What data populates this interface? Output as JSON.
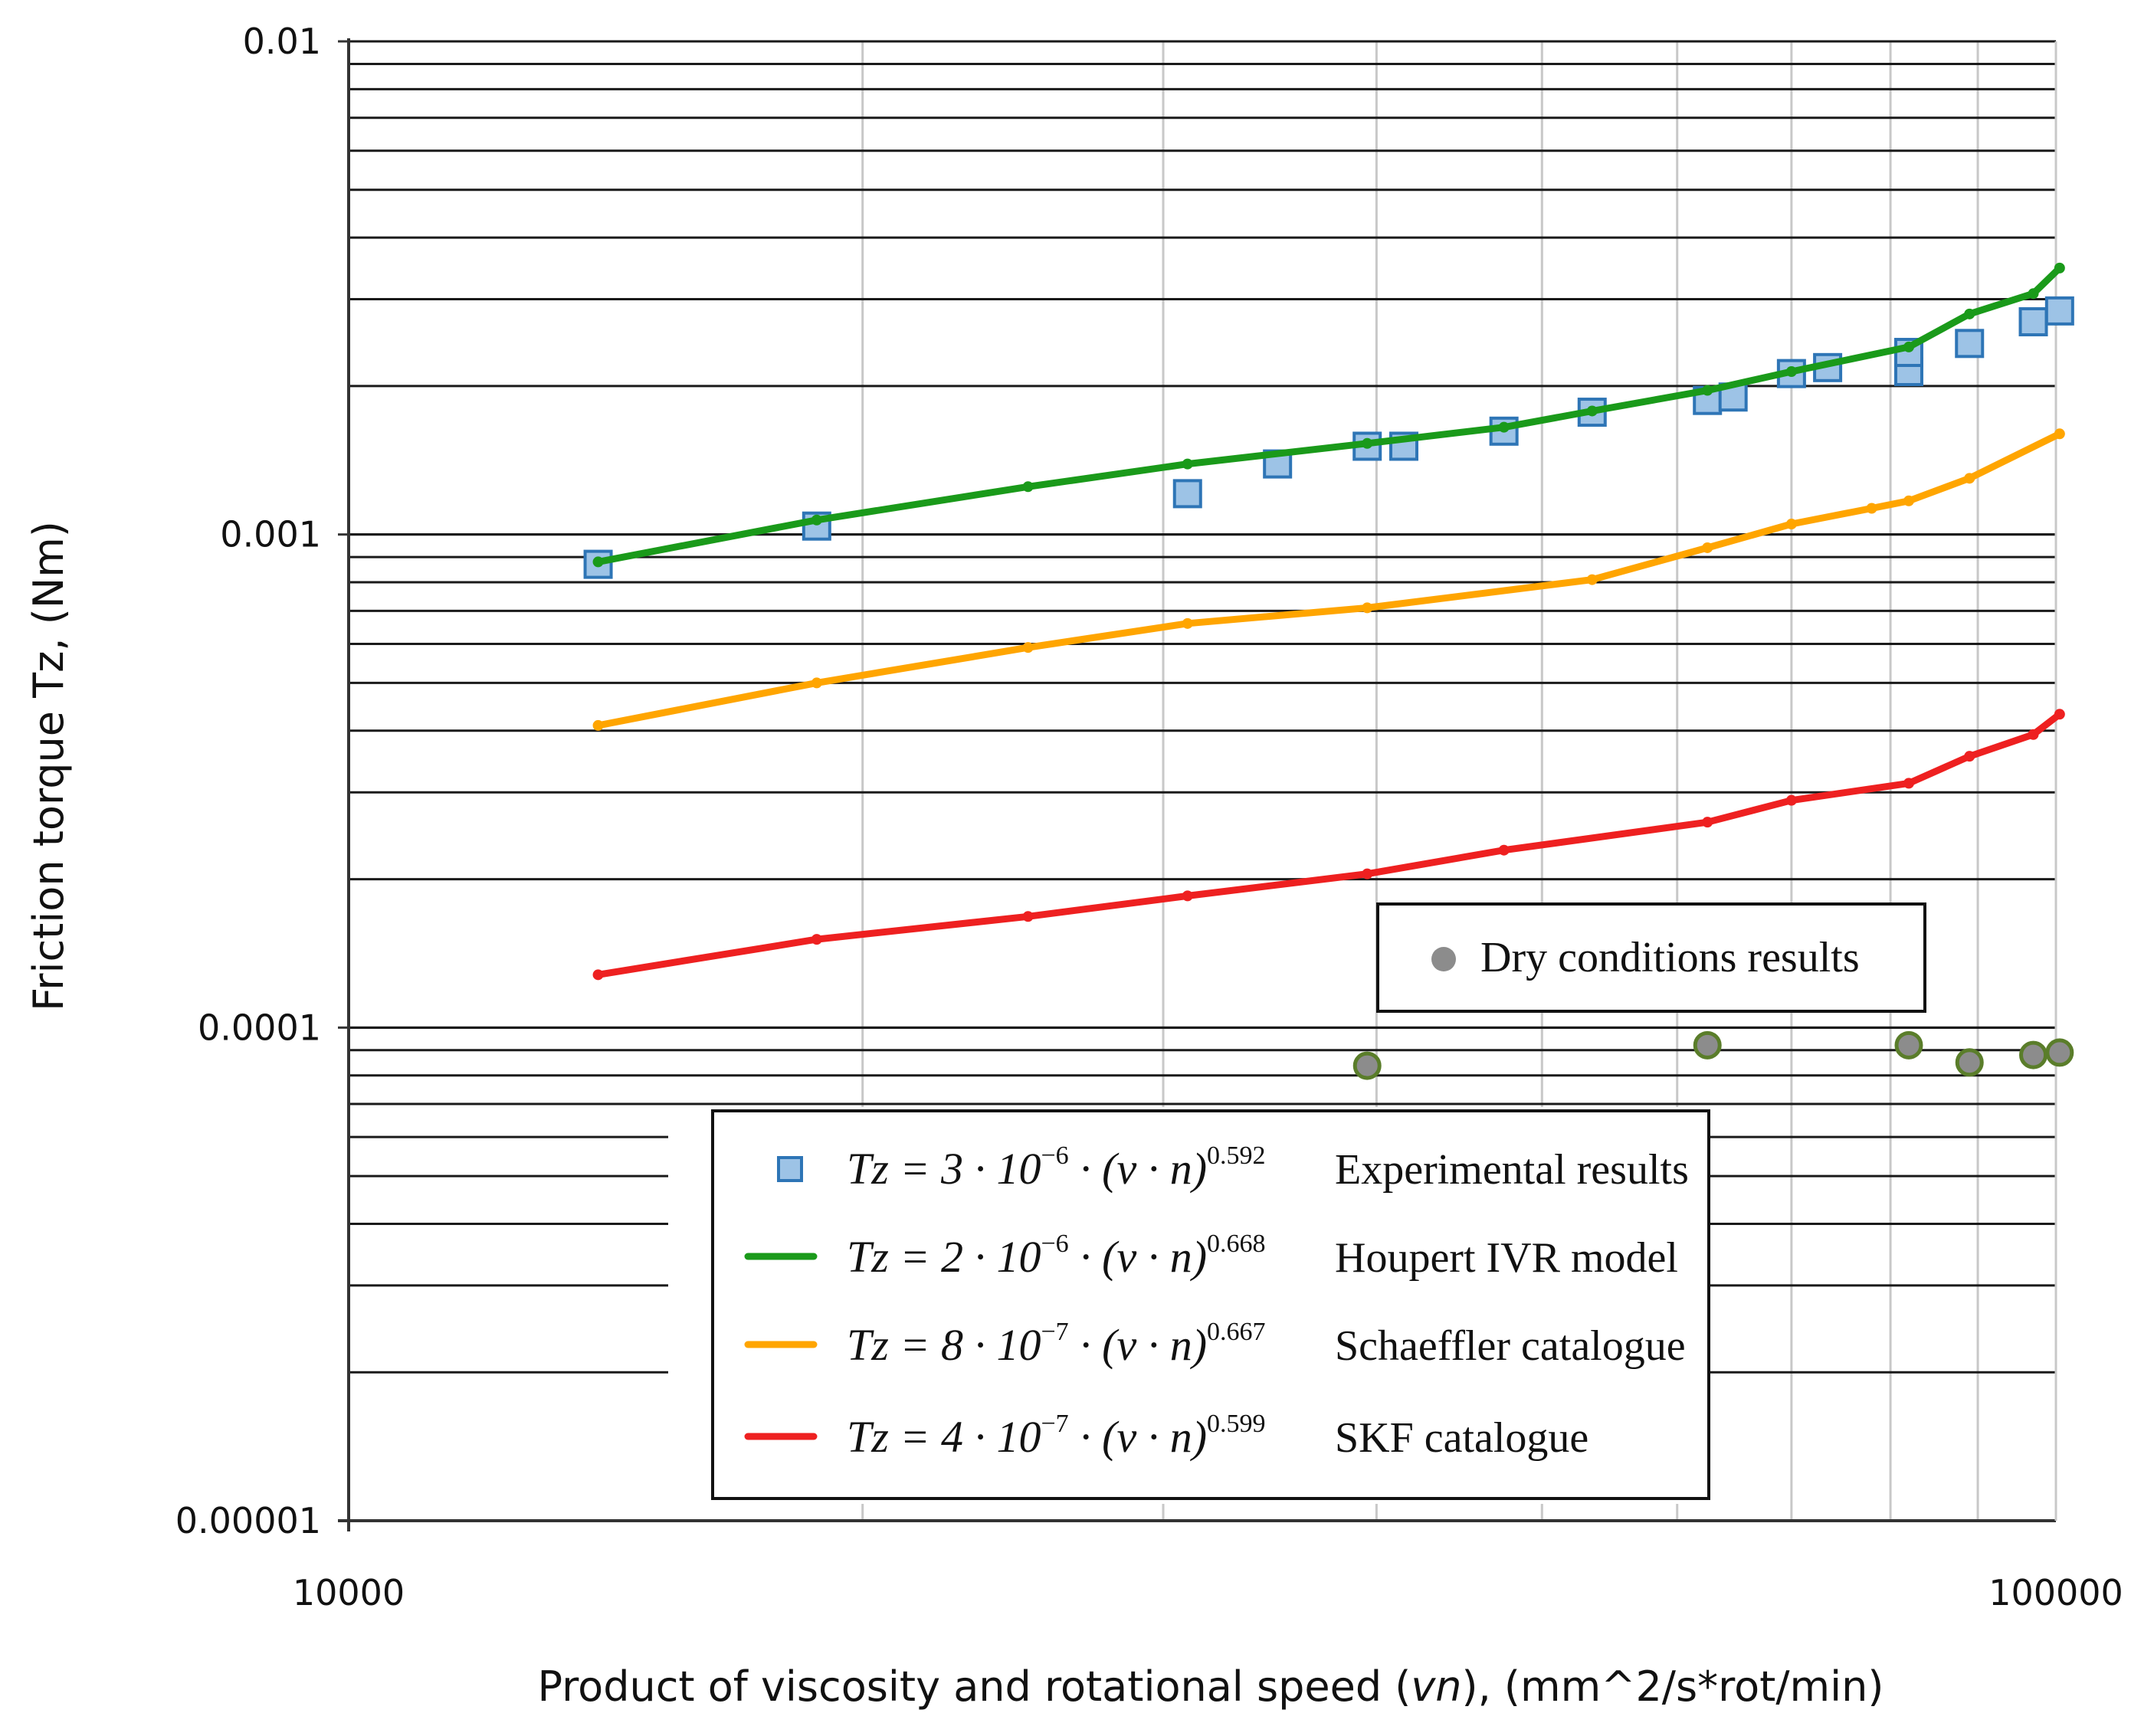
{
  "chart_data": {
    "type": "scatter",
    "xscale": "log",
    "yscale": "log",
    "xlim": [
      10000,
      100000
    ],
    "ylim": [
      1e-05,
      0.01
    ],
    "xlabel_parts": [
      "Product of viscosity and rotational speed (",
      "vn",
      "), (mm^2/s*rot/min)"
    ],
    "ylabel": "Friction torque Tz, (Nm)",
    "x_tick_labels": [
      {
        "value": 10000,
        "label": "10000"
      },
      {
        "value": 100000,
        "label": "100000"
      }
    ],
    "y_tick_labels": [
      {
        "value": 0.01,
        "label": "0.01"
      },
      {
        "value": 0.001,
        "label": "0.001"
      },
      {
        "value": 0.0001,
        "label": "0.0001"
      },
      {
        "value": 1e-05,
        "label": "0.00001"
      }
    ],
    "series": [
      {
        "name": "Experimental results",
        "equation": {
          "prefix": "Tz = 3 · 10",
          "exp10": "−6",
          "mid": " · (ν · n)",
          "power": "0.592"
        },
        "kind": "scatter-square",
        "color": "#9dc3e6",
        "edge": "#2e75b6",
        "points": [
          [
            14000,
            0.00087
          ],
          [
            18800,
            0.00104
          ],
          [
            31000,
            0.00121
          ],
          [
            35000,
            0.00139
          ],
          [
            39500,
            0.00151
          ],
          [
            41500,
            0.00151
          ],
          [
            47500,
            0.00162
          ],
          [
            53500,
            0.00177
          ],
          [
            62500,
            0.00187
          ],
          [
            64700,
            0.0019
          ],
          [
            70000,
            0.00212
          ],
          [
            73500,
            0.00218
          ],
          [
            82000,
            0.00214
          ],
          [
            82000,
            0.00234
          ],
          [
            89000,
            0.00244
          ],
          [
            97000,
            0.0027
          ],
          [
            100500,
            0.00284
          ]
        ]
      },
      {
        "name": "Houpert IVR model",
        "equation": {
          "prefix": "Tz = 2 · 10",
          "exp10": "−6",
          "mid": " · (ν · n)",
          "power": "0.668"
        },
        "kind": "line",
        "color": "#1a9a1a",
        "points": [
          [
            14000,
            0.00088
          ],
          [
            18800,
            0.00107
          ],
          [
            25000,
            0.00125
          ],
          [
            31000,
            0.00139
          ],
          [
            39500,
            0.00153
          ],
          [
            47500,
            0.00165
          ],
          [
            53500,
            0.00178
          ],
          [
            62500,
            0.00196
          ],
          [
            70000,
            0.00214
          ],
          [
            82000,
            0.0024
          ],
          [
            89000,
            0.0028
          ],
          [
            97000,
            0.00308
          ],
          [
            100500,
            0.00347
          ]
        ]
      },
      {
        "name": "Schaeffler catalogue",
        "equation": {
          "prefix": "Tz = 8 · 10",
          "exp10": "−7",
          "mid": " · (ν · n)",
          "power": "0.667"
        },
        "kind": "line",
        "color": "#ffa500",
        "points": [
          [
            14000,
            0.00041
          ],
          [
            18800,
            0.0005
          ],
          [
            25000,
            0.00059
          ],
          [
            31000,
            0.00066
          ],
          [
            39500,
            0.00071
          ],
          [
            53500,
            0.00081
          ],
          [
            62500,
            0.00094
          ],
          [
            70000,
            0.00105
          ],
          [
            78000,
            0.00113
          ],
          [
            82000,
            0.00117
          ],
          [
            89000,
            0.0013
          ],
          [
            100500,
            0.0016
          ]
        ]
      },
      {
        "name": "SKF catalogue",
        "equation": {
          "prefix": "Tz = 4 · 10",
          "exp10": "−7",
          "mid": " · (ν · n)",
          "power": "0.599"
        },
        "kind": "line",
        "color": "#ee2020",
        "points": [
          [
            14000,
            0.000128
          ],
          [
            18800,
            0.000151
          ],
          [
            25000,
            0.000168
          ],
          [
            31000,
            0.000185
          ],
          [
            39500,
            0.000205
          ],
          [
            47500,
            0.000229
          ],
          [
            62500,
            0.000261
          ],
          [
            70000,
            0.000289
          ],
          [
            82000,
            0.000313
          ],
          [
            89000,
            0.000355
          ],
          [
            97000,
            0.000393
          ],
          [
            100500,
            0.000432
          ]
        ]
      },
      {
        "name": "Dry conditions results",
        "kind": "scatter-circle",
        "color": "#8c8c8c",
        "edge": "#5a7d2a",
        "points": [
          [
            39500,
            8.37e-05
          ],
          [
            62500,
            9.21e-05
          ],
          [
            82000,
            9.21e-05
          ],
          [
            89000,
            8.5e-05
          ],
          [
            97000,
            8.8e-05
          ],
          [
            100500,
            8.9e-05
          ]
        ]
      }
    ]
  }
}
